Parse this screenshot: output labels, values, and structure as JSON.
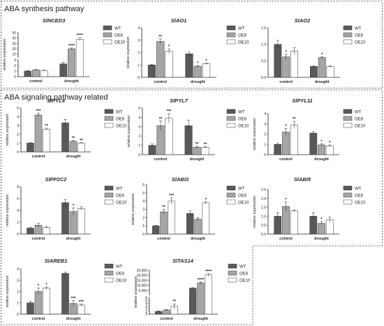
{
  "sections": [
    {
      "title": "ABA synthesis pathway"
    },
    {
      "title": "ABA signaling pathway related"
    }
  ],
  "shared": {
    "ylabel": "relative expression",
    "categories": [
      "control",
      "drought"
    ],
    "legend": [
      "WT",
      "OE8",
      "OE10"
    ],
    "colors": {
      "WT": "#595959",
      "OE8": "#a6a6a6",
      "OE10": "#ffffff"
    }
  },
  "chart_data": [
    {
      "type": "bar",
      "title": "SlNCED3",
      "ylabel": "relative expression",
      "categories": [
        "control",
        "drought"
      ],
      "ylim": [
        0,
        50
      ],
      "broken_axis": {
        "lower": [
          0,
          3
        ],
        "upper": [
          3,
          50
        ]
      },
      "yticks": [
        "0",
        "1",
        "2",
        "3",
        "10",
        "20",
        "30",
        "40",
        "50"
      ],
      "series": [
        {
          "name": "WT",
          "values": [
            1.0,
            2.3
          ],
          "err": [
            0.1,
            0.3
          ],
          "sig": [
            "",
            ""
          ]
        },
        {
          "name": "OE8",
          "values": [
            1.2,
            20
          ],
          "err": [
            0.1,
            1.5
          ],
          "sig": [
            "",
            "****"
          ]
        },
        {
          "name": "OE10",
          "values": [
            1.1,
            38
          ],
          "err": [
            0.1,
            3
          ],
          "sig": [
            "",
            "****"
          ]
        }
      ],
      "legend": "right"
    },
    {
      "type": "bar",
      "title": "SlAO1",
      "ylabel": "relative expression",
      "categories": [
        "control",
        "drought"
      ],
      "ylim": [
        0,
        4
      ],
      "yticks": [
        "0",
        "1",
        "2",
        "3",
        "4"
      ],
      "series": [
        {
          "name": "WT",
          "values": [
            1.0,
            1.9
          ],
          "err": [
            0.05,
            0.15
          ],
          "sig": [
            "",
            ""
          ]
        },
        {
          "name": "OE8",
          "values": [
            2.9,
            0.9
          ],
          "err": [
            0.2,
            0.05
          ],
          "sig": [
            "**",
            "*"
          ]
        },
        {
          "name": "OE10",
          "values": [
            2.1,
            1.1
          ],
          "err": [
            0.2,
            0.05
          ],
          "sig": [
            "*",
            "*"
          ]
        }
      ],
      "legend": "right"
    },
    {
      "type": "bar",
      "title": "SlAO2",
      "ylabel": "",
      "categories": [
        "control",
        "drought"
      ],
      "ylim": [
        0,
        1.5
      ],
      "yticks": [
        "0.0",
        "0.5",
        "1.0",
        "1.5"
      ],
      "series": [
        {
          "name": "WT",
          "values": [
            1.0,
            0.33
          ],
          "err": [
            0.12,
            0.02
          ],
          "sig": [
            "",
            ""
          ]
        },
        {
          "name": "OE8",
          "values": [
            0.62,
            0.6
          ],
          "err": [
            0.08,
            0.02
          ],
          "sig": [
            "*",
            "*"
          ]
        },
        {
          "name": "OE10",
          "values": [
            0.8,
            0.33
          ],
          "err": [
            0.1,
            0.02
          ],
          "sig": [
            "",
            ""
          ]
        }
      ],
      "legend": "right"
    },
    {
      "type": "bar",
      "title": "SlPYL4",
      "ylabel": "relative expression",
      "categories": [
        "control",
        "drought"
      ],
      "ylim": [
        0,
        5
      ],
      "yticks": [
        "0",
        "1",
        "2",
        "3",
        "4",
        "5"
      ],
      "series": [
        {
          "name": "WT",
          "values": [
            1.0,
            3.3
          ],
          "err": [
            0.05,
            0.4
          ],
          "sig": [
            "",
            ""
          ]
        },
        {
          "name": "OE8",
          "values": [
            4.2,
            1.2
          ],
          "err": [
            0.2,
            0.1
          ],
          "sig": [
            "***",
            "**"
          ]
        },
        {
          "name": "OE10",
          "values": [
            2.6,
            1.0
          ],
          "err": [
            0.1,
            0.05
          ],
          "sig": [
            "**",
            "**"
          ]
        }
      ],
      "legend": "right"
    },
    {
      "type": "bar",
      "title": "SlPYL7",
      "ylabel": "relative expression",
      "categories": [
        "control",
        "drought"
      ],
      "ylim": [
        0,
        5
      ],
      "yticks": [
        "0",
        "1",
        "2",
        "3",
        "4",
        "5"
      ],
      "series": [
        {
          "name": "WT",
          "values": [
            1.0,
            3.1
          ],
          "err": [
            0.15,
            0.6
          ],
          "sig": [
            "",
            ""
          ]
        },
        {
          "name": "OE8",
          "values": [
            3.1,
            0.8
          ],
          "err": [
            0.5,
            0.1
          ],
          "sig": [
            "**",
            "**"
          ]
        },
        {
          "name": "OE10",
          "values": [
            3.9,
            0.8
          ],
          "err": [
            0.5,
            0.05
          ],
          "sig": [
            "***",
            "**"
          ]
        }
      ],
      "legend": "right"
    },
    {
      "type": "bar",
      "title": "SlPYL11",
      "ylabel": "relative expression",
      "categories": [
        "control",
        "drought"
      ],
      "ylim": [
        0,
        4
      ],
      "yticks": [
        "0",
        "1",
        "2",
        "3",
        "4"
      ],
      "series": [
        {
          "name": "WT",
          "values": [
            1.0,
            2.1
          ],
          "err": [
            0.1,
            0.15
          ],
          "sig": [
            "",
            ""
          ]
        },
        {
          "name": "OE8",
          "values": [
            2.2,
            0.95
          ],
          "err": [
            0.35,
            0.1
          ],
          "sig": [
            "*",
            "*"
          ]
        },
        {
          "name": "OE10",
          "values": [
            2.9,
            0.85
          ],
          "err": [
            0.35,
            0.1
          ],
          "sig": [
            "**",
            "*"
          ]
        }
      ],
      "legend": "right"
    },
    {
      "type": "bar",
      "title": "SlPP2C2",
      "ylabel": "relative expression",
      "categories": [
        "control",
        "drought"
      ],
      "ylim": [
        0,
        8
      ],
      "yticks": [
        "0",
        "2",
        "4",
        "6",
        "8"
      ],
      "series": [
        {
          "name": "WT",
          "values": [
            1.0,
            5.3
          ],
          "err": [
            0.1,
            0.5
          ],
          "sig": [
            "",
            ""
          ]
        },
        {
          "name": "OE8",
          "values": [
            1.5,
            3.8
          ],
          "err": [
            0.3,
            0.6
          ],
          "sig": [
            "",
            "*"
          ]
        },
        {
          "name": "OE10",
          "values": [
            1.1,
            4.3
          ],
          "err": [
            0.2,
            0.3
          ],
          "sig": [
            "",
            ""
          ]
        }
      ],
      "legend": "right"
    },
    {
      "type": "bar",
      "title": "SlABI3",
      "ylabel": "relative expression",
      "categories": [
        "control",
        "drought"
      ],
      "ylim": [
        0,
        6
      ],
      "yticks": [
        "0",
        "1",
        "2",
        "3",
        "4",
        "5",
        "6"
      ],
      "series": [
        {
          "name": "WT",
          "values": [
            1.0,
            2.5
          ],
          "err": [
            0.05,
            0.3
          ],
          "sig": [
            "",
            ""
          ]
        },
        {
          "name": "OE8",
          "values": [
            2.7,
            1.8
          ],
          "err": [
            0.3,
            0.2
          ],
          "sig": [
            "**",
            ""
          ]
        },
        {
          "name": "OE10",
          "values": [
            4.0,
            3.8
          ],
          "err": [
            0.4,
            0.1
          ],
          "sig": [
            "***",
            "*"
          ]
        }
      ],
      "legend": "right"
    },
    {
      "type": "bar",
      "title": "SlABI5",
      "ylabel": "relative expression",
      "categories": [
        "control",
        "drought"
      ],
      "ylim": [
        0,
        2.5
      ],
      "yticks": [
        "0.0",
        "0.5",
        "1.0",
        "1.5",
        "2.0",
        "2.5"
      ],
      "series": [
        {
          "name": "WT",
          "values": [
            1.0,
            1.0
          ],
          "err": [
            0.2,
            0.2
          ],
          "sig": [
            "",
            ""
          ]
        },
        {
          "name": "OE8",
          "values": [
            1.55,
            0.6
          ],
          "err": [
            0.25,
            0.1
          ],
          "sig": [
            "*",
            "*"
          ]
        },
        {
          "name": "OE10",
          "values": [
            1.3,
            0.8
          ],
          "err": [
            0.05,
            0.15
          ],
          "sig": [
            "",
            ""
          ]
        }
      ],
      "legend": "right"
    },
    {
      "type": "bar",
      "title": "SlAREB1",
      "ylabel": "relative expression",
      "categories": [
        "control",
        "drought"
      ],
      "ylim": [
        0,
        4
      ],
      "yticks": [
        "0",
        "1",
        "2",
        "3",
        "4"
      ],
      "series": [
        {
          "name": "WT",
          "values": [
            1.0,
            3.6
          ],
          "err": [
            0.15,
            0.1
          ],
          "sig": [
            "",
            ""
          ]
        },
        {
          "name": "OE8",
          "values": [
            2.0,
            0.95
          ],
          "err": [
            0.3,
            0.25
          ],
          "sig": [
            "*",
            "***"
          ]
        },
        {
          "name": "OE10",
          "values": [
            2.3,
            0.8
          ],
          "err": [
            0.1,
            0.1
          ],
          "sig": [
            "*",
            "***"
          ]
        }
      ],
      "legend": "right"
    },
    {
      "type": "bar",
      "title": "SlTAS14",
      "ylabel": "relative expression",
      "categories": [
        "control",
        "drought"
      ],
      "ylim": [
        0,
        25000
      ],
      "broken_axis": {
        "lower": [
          0,
          6
        ],
        "upper": [
          6,
          25000
        ]
      },
      "yticks": [
        "0",
        "1",
        "2",
        "3",
        "4",
        "5",
        "6",
        "5,000",
        "10,000",
        "15,000",
        "20,000",
        "25,000"
      ],
      "series": [
        {
          "name": "WT",
          "values": [
            1.0,
            7200
          ],
          "err": [
            0.2,
            500
          ],
          "sig": [
            "",
            ""
          ]
        },
        {
          "name": "OE8",
          "values": [
            1.5,
            12500
          ],
          "err": [
            0.2,
            800
          ],
          "sig": [
            "",
            "****"
          ]
        },
        {
          "name": "OE10",
          "values": [
            2.8,
            20500
          ],
          "err": [
            0.9,
            1200
          ],
          "sig": [
            "**",
            "****"
          ]
        }
      ],
      "legend": "right"
    }
  ]
}
